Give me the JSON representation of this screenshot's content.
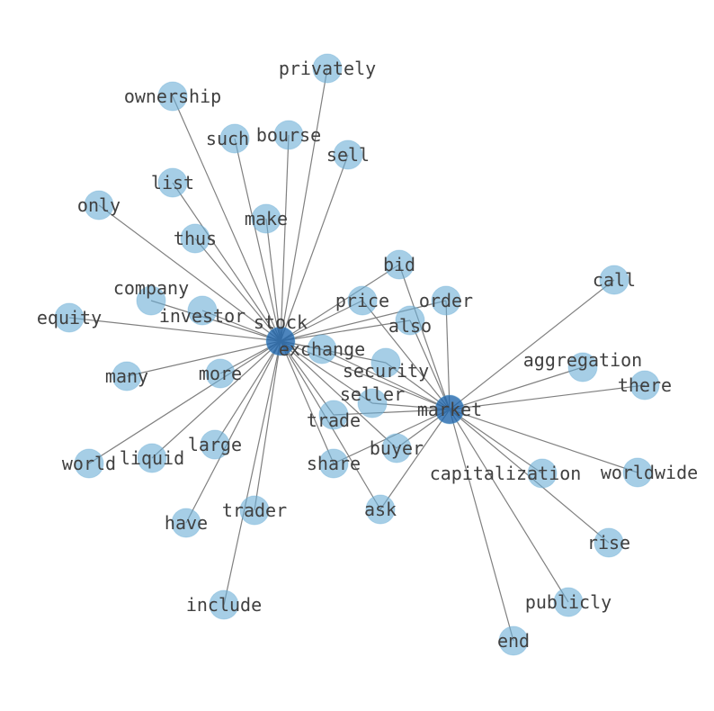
{
  "diagram": {
    "type": "network",
    "colors": {
      "node": "#6baed6",
      "hub_node": "#2166ac",
      "edge": "#808080",
      "label": "#404040"
    },
    "hubs": [
      "stock",
      "market"
    ],
    "nodes": [
      "privately",
      "ownership",
      "such",
      "bourse",
      "sell",
      "list",
      "only",
      "make",
      "thus",
      "company",
      "investor",
      "equity",
      "stock",
      "exchange",
      "many",
      "more",
      "world",
      "liquid",
      "large",
      "have",
      "trader",
      "include",
      "bid",
      "price",
      "order",
      "also",
      "security",
      "seller",
      "trade",
      "market",
      "buyer",
      "share",
      "ask",
      "call",
      "aggregation",
      "there",
      "worldwide",
      "capitalization",
      "rise",
      "publicly",
      "end"
    ],
    "edges": [
      [
        "stock",
        "privately"
      ],
      [
        "stock",
        "ownership"
      ],
      [
        "stock",
        "such"
      ],
      [
        "stock",
        "bourse"
      ],
      [
        "stock",
        "sell"
      ],
      [
        "stock",
        "list"
      ],
      [
        "stock",
        "only"
      ],
      [
        "stock",
        "make"
      ],
      [
        "stock",
        "thus"
      ],
      [
        "stock",
        "company"
      ],
      [
        "stock",
        "investor"
      ],
      [
        "stock",
        "equity"
      ],
      [
        "stock",
        "many"
      ],
      [
        "stock",
        "more"
      ],
      [
        "stock",
        "world"
      ],
      [
        "stock",
        "liquid"
      ],
      [
        "stock",
        "large"
      ],
      [
        "stock",
        "have"
      ],
      [
        "stock",
        "trader"
      ],
      [
        "stock",
        "include"
      ],
      [
        "stock",
        "exchange"
      ],
      [
        "stock",
        "price"
      ],
      [
        "stock",
        "bid"
      ],
      [
        "stock",
        "order"
      ],
      [
        "stock",
        "also"
      ],
      [
        "stock",
        "security"
      ],
      [
        "stock",
        "trade"
      ],
      [
        "stock",
        "seller"
      ],
      [
        "stock",
        "buyer"
      ],
      [
        "stock",
        "share"
      ],
      [
        "stock",
        "ask"
      ],
      [
        "stock",
        "market"
      ],
      [
        "market",
        "bid"
      ],
      [
        "market",
        "price"
      ],
      [
        "market",
        "order"
      ],
      [
        "market",
        "also"
      ],
      [
        "market",
        "security"
      ],
      [
        "market",
        "seller"
      ],
      [
        "market",
        "trade"
      ],
      [
        "market",
        "buyer"
      ],
      [
        "market",
        "share"
      ],
      [
        "market",
        "ask"
      ],
      [
        "market",
        "exchange"
      ],
      [
        "market",
        "call"
      ],
      [
        "market",
        "aggregation"
      ],
      [
        "market",
        "there"
      ],
      [
        "market",
        "worldwide"
      ],
      [
        "market",
        "capitalization"
      ],
      [
        "market",
        "rise"
      ],
      [
        "market",
        "publicly"
      ],
      [
        "market",
        "end"
      ]
    ]
  }
}
